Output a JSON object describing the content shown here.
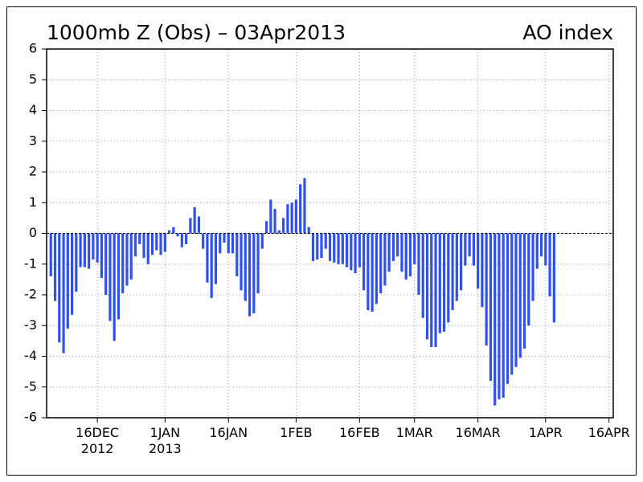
{
  "chart_data": {
    "type": "bar",
    "title": "1000mb Z (Obs) – 03Apr2013",
    "subtitle": "AO index",
    "x": [
      "2012-12-05",
      "2012-12-06",
      "2012-12-07",
      "2012-12-08",
      "2012-12-09",
      "2012-12-10",
      "2012-12-11",
      "2012-12-12",
      "2012-12-13",
      "2012-12-14",
      "2012-12-15",
      "2012-12-16",
      "2012-12-17",
      "2012-12-18",
      "2012-12-19",
      "2012-12-20",
      "2012-12-21",
      "2012-12-22",
      "2012-12-23",
      "2012-12-24",
      "2012-12-25",
      "2012-12-26",
      "2012-12-27",
      "2012-12-28",
      "2012-12-29",
      "2012-12-30",
      "2012-12-31",
      "2013-01-01",
      "2013-01-02",
      "2013-01-03",
      "2013-01-04",
      "2013-01-05",
      "2013-01-06",
      "2013-01-07",
      "2013-01-08",
      "2013-01-09",
      "2013-01-10",
      "2013-01-11",
      "2013-01-12",
      "2013-01-13",
      "2013-01-14",
      "2013-01-15",
      "2013-01-16",
      "2013-01-17",
      "2013-01-18",
      "2013-01-19",
      "2013-01-20",
      "2013-01-21",
      "2013-01-22",
      "2013-01-23",
      "2013-01-24",
      "2013-01-25",
      "2013-01-26",
      "2013-01-27",
      "2013-01-28",
      "2013-01-29",
      "2013-01-30",
      "2013-01-31",
      "2013-02-01",
      "2013-02-02",
      "2013-02-03",
      "2013-02-04",
      "2013-02-05",
      "2013-02-06",
      "2013-02-07",
      "2013-02-08",
      "2013-02-09",
      "2013-02-10",
      "2013-02-11",
      "2013-02-12",
      "2013-02-13",
      "2013-02-14",
      "2013-02-15",
      "2013-02-16",
      "2013-02-17",
      "2013-02-18",
      "2013-02-19",
      "2013-02-20",
      "2013-02-21",
      "2013-02-22",
      "2013-02-23",
      "2013-02-24",
      "2013-02-25",
      "2013-02-26",
      "2013-02-27",
      "2013-02-28",
      "2013-03-01",
      "2013-03-02",
      "2013-03-03",
      "2013-03-04",
      "2013-03-05",
      "2013-03-06",
      "2013-03-07",
      "2013-03-08",
      "2013-03-09",
      "2013-03-10",
      "2013-03-11",
      "2013-03-12",
      "2013-03-13",
      "2013-03-14",
      "2013-03-15",
      "2013-03-16",
      "2013-03-17",
      "2013-03-18",
      "2013-03-19",
      "2013-03-20",
      "2013-03-21",
      "2013-03-22",
      "2013-03-23",
      "2013-03-24",
      "2013-03-25",
      "2013-03-26",
      "2013-03-27",
      "2013-03-28",
      "2013-03-29",
      "2013-03-30",
      "2013-03-31",
      "2013-04-01",
      "2013-04-02",
      "2013-04-03"
    ],
    "values": [
      -1.4,
      -2.2,
      -3.55,
      -3.9,
      -3.1,
      -2.65,
      -1.9,
      -1.1,
      -1.1,
      -1.15,
      -0.85,
      -0.95,
      -1.45,
      -2.0,
      -2.85,
      -3.5,
      -2.8,
      -1.95,
      -1.7,
      -1.5,
      -0.75,
      -0.35,
      -0.8,
      -1.0,
      -0.7,
      -0.55,
      -0.7,
      -0.6,
      0.1,
      0.2,
      -0.1,
      -0.45,
      -0.35,
      0.5,
      0.85,
      0.55,
      -0.5,
      -1.6,
      -2.1,
      -1.65,
      -0.65,
      -0.3,
      -0.65,
      -0.65,
      -1.4,
      -1.85,
      -2.2,
      -2.7,
      -2.6,
      -1.95,
      -0.5,
      0.4,
      1.1,
      0.8,
      0.1,
      0.5,
      0.95,
      1.0,
      1.1,
      1.6,
      1.8,
      0.2,
      -0.9,
      -0.85,
      -0.8,
      -0.5,
      -0.9,
      -0.95,
      -1.0,
      -1.0,
      -1.1,
      -1.2,
      -1.3,
      -1.1,
      -1.85,
      -2.5,
      -2.55,
      -2.3,
      -1.95,
      -1.7,
      -1.25,
      -0.9,
      -0.75,
      -1.25,
      -1.5,
      -1.4,
      -1.0,
      -2.0,
      -2.75,
      -3.45,
      -3.7,
      -3.7,
      -3.25,
      -3.2,
      -2.9,
      -2.5,
      -2.2,
      -1.85,
      -1.05,
      -0.75,
      -1.05,
      -1.8,
      -2.4,
      -3.65,
      -4.8,
      -5.6,
      -5.4,
      -5.35,
      -4.9,
      -4.6,
      -4.35,
      -4.05,
      -3.75,
      -3.0,
      -2.2,
      -1.15,
      -0.75,
      -1.05,
      -2.05,
      -2.9
    ],
    "color": "#3050f0",
    "xlim": [
      "2012-12-04",
      "2013-04-17"
    ],
    "xticks": [
      {
        "value": "2012-12-16",
        "label": "16DEC\n2012"
      },
      {
        "value": "2013-01-01",
        "label": "1JAN\n2013"
      },
      {
        "value": "2013-01-16",
        "label": "16JAN"
      },
      {
        "value": "2013-02-01",
        "label": "1FEB"
      },
      {
        "value": "2013-02-16",
        "label": "16FEB"
      },
      {
        "value": "2013-03-01",
        "label": "1MAR"
      },
      {
        "value": "2013-03-16",
        "label": "16MAR"
      },
      {
        "value": "2013-04-01",
        "label": "1APR"
      },
      {
        "value": "2013-04-16",
        "label": "16APR"
      }
    ],
    "ylim": [
      -6,
      6
    ],
    "yticks": [
      -6,
      -5,
      -4,
      -3,
      -2,
      -1,
      0,
      1,
      2,
      3,
      4,
      5,
      6
    ],
    "grid": true
  }
}
